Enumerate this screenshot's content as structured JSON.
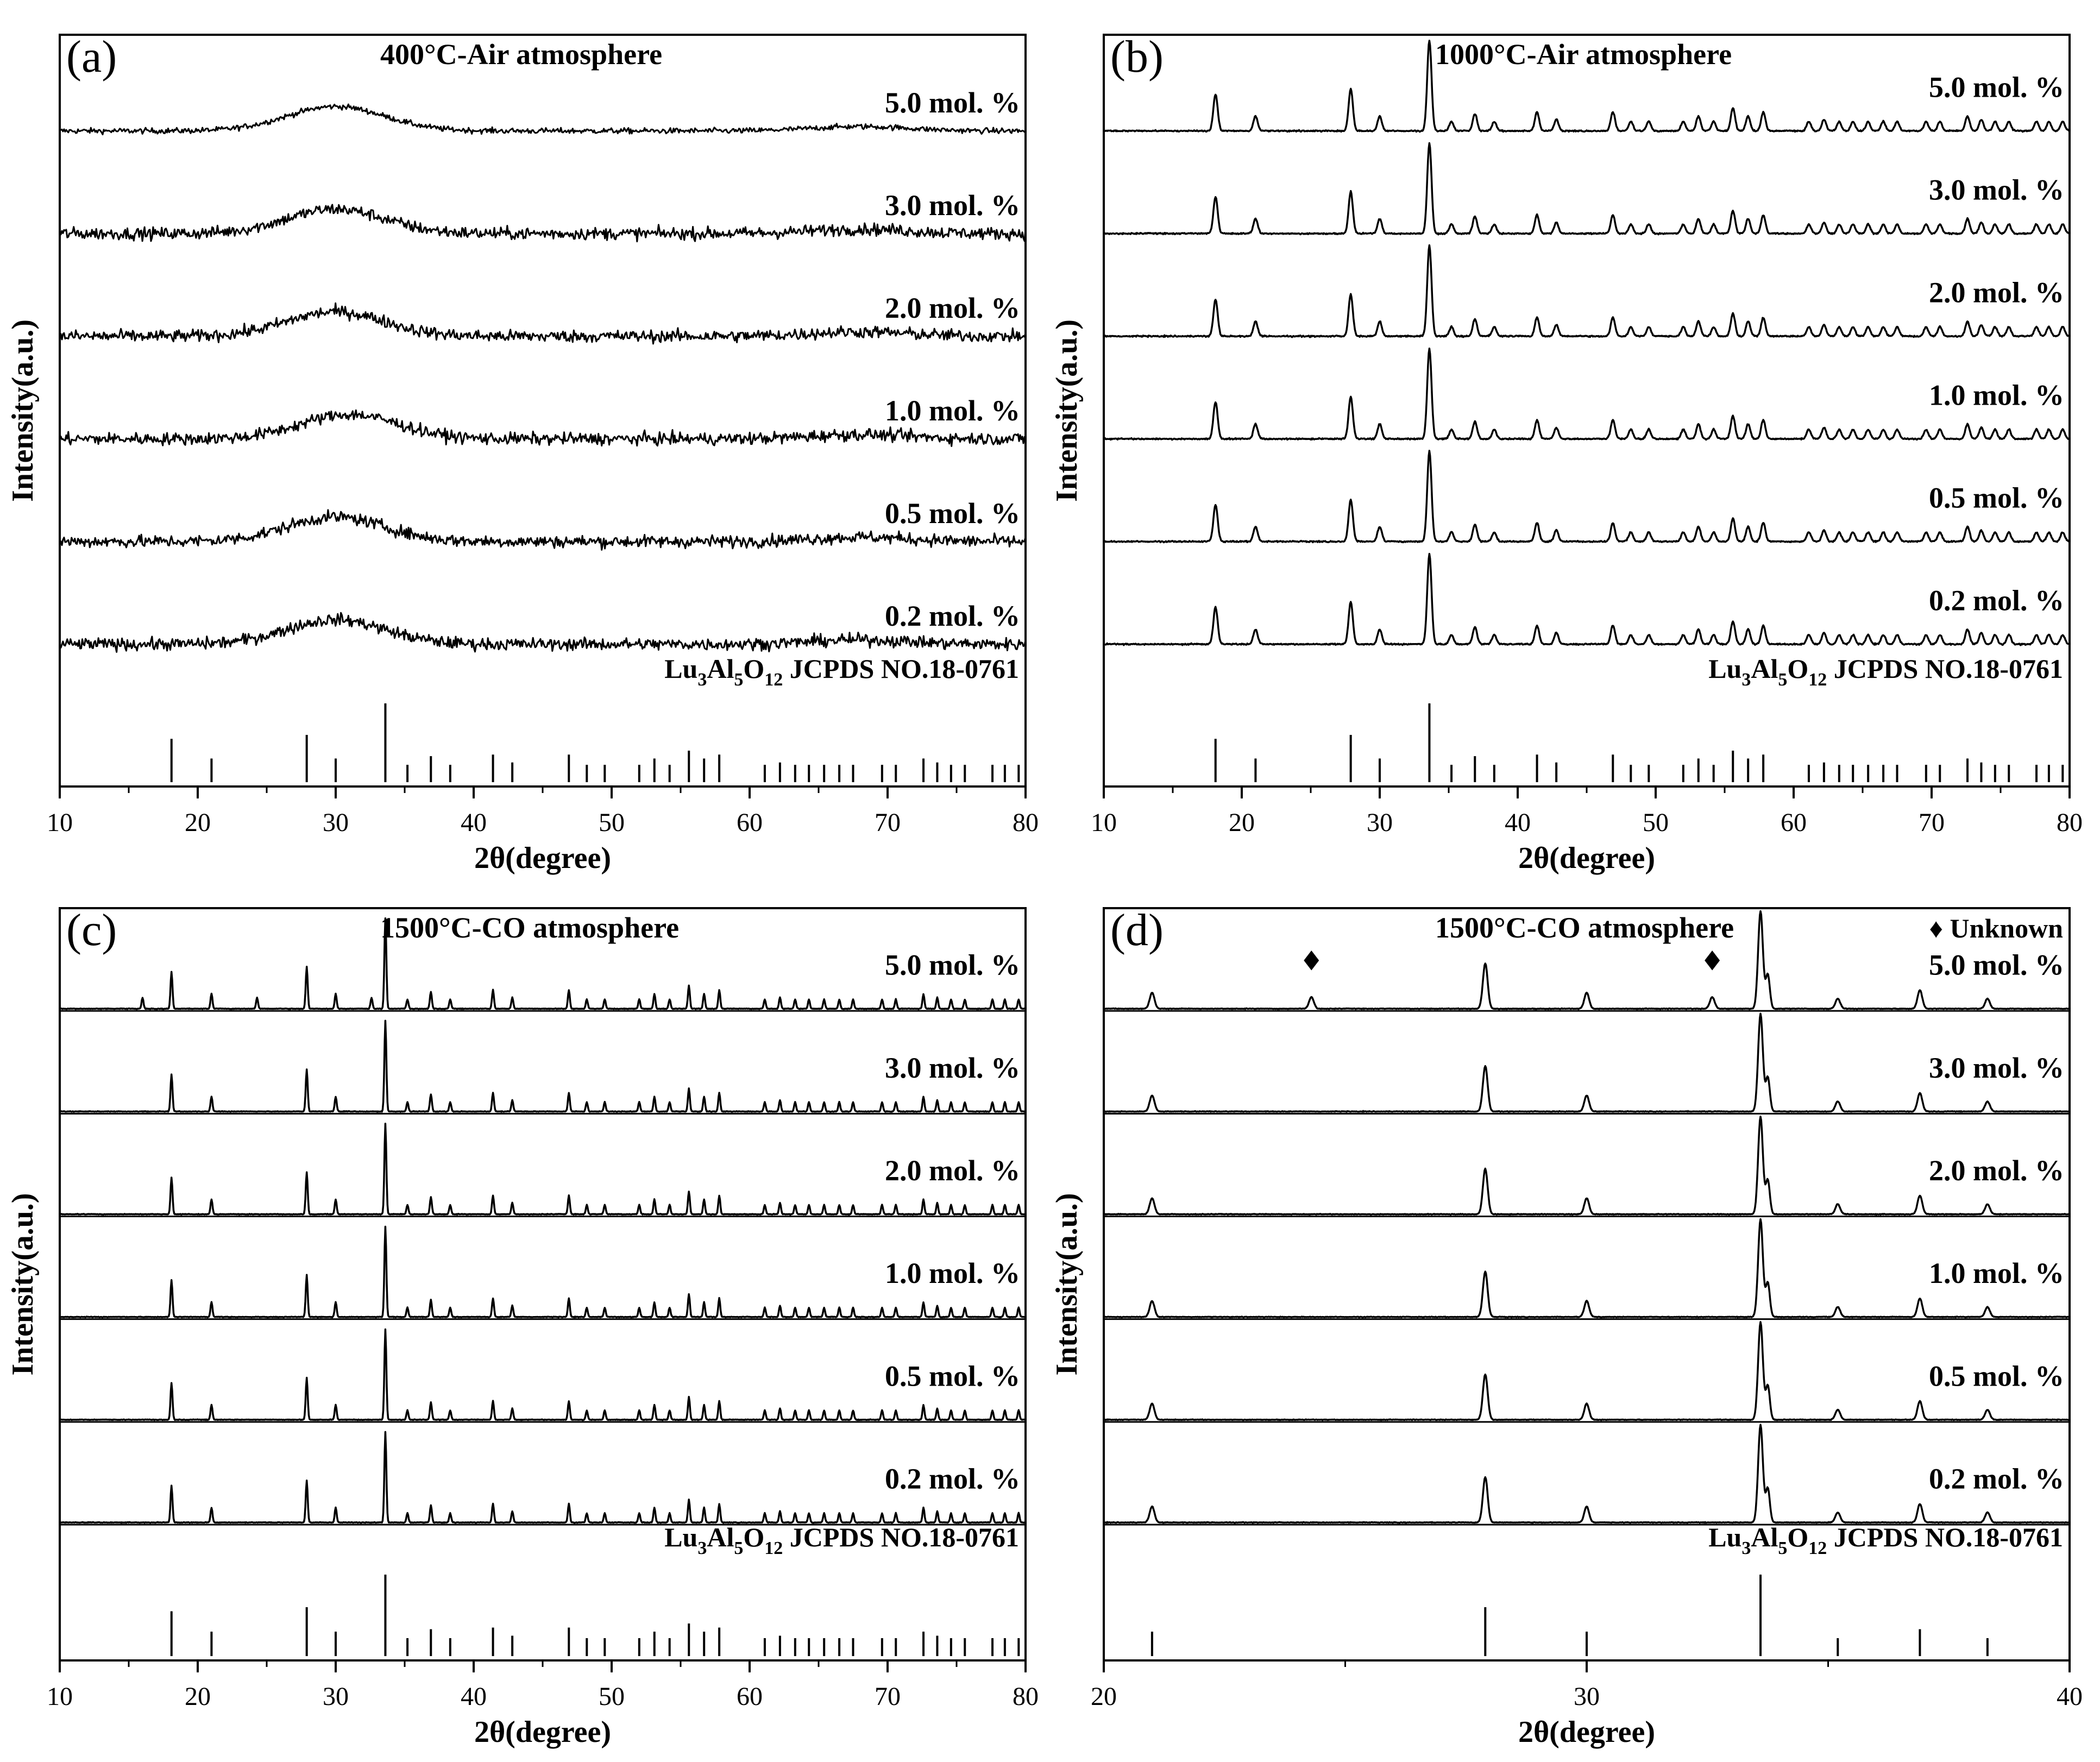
{
  "figure": {
    "x_axis_label": "2θ(degree)",
    "y_axis_label": "Intensity(a.u.)",
    "reference_label": {
      "prefix": "Lu",
      "sub1": "3",
      "mid1": "Al",
      "sub2": "5",
      "mid2": "O",
      "sub3": "12",
      "suffix": " JCPDS NO.18-0761"
    },
    "sample_labels": [
      "5.0 mol. %",
      "3.0 mol. %",
      "2.0 mol. %",
      "1.0 mol. %",
      "0.5 mol. %",
      "0.2 mol. %"
    ],
    "line_color": "#000000"
  },
  "chart_data": [
    {
      "type": "line",
      "panel_letter": "(a)",
      "title": "400°C-Air atmosphere",
      "xlabel": "2θ(degree)",
      "ylabel": "Intensity(a.u.)",
      "xlim": [
        10,
        80
      ],
      "xticks": [
        10,
        20,
        30,
        40,
        50,
        60,
        70,
        80
      ],
      "pattern": "amorphous",
      "series": [
        {
          "name": "5.0 mol. %",
          "broad_hump_center": 30,
          "noise": "low"
        },
        {
          "name": "3.0 mol. %",
          "broad_hump_center": 30,
          "noise": "high"
        },
        {
          "name": "2.0 mol. %",
          "broad_hump_center": 30,
          "noise": "high"
        },
        {
          "name": "1.0 mol. %",
          "broad_hump_center": 31,
          "noise": "high"
        },
        {
          "name": "0.5 mol. %",
          "broad_hump_center": 30,
          "noise": "high"
        },
        {
          "name": "0.2 mol. %",
          "broad_hump_center": 30,
          "noise": "high"
        }
      ]
    },
    {
      "type": "line",
      "panel_letter": "(b)",
      "title": "1000°C-Air atmosphere",
      "xlabel": "2θ(degree)",
      "ylabel": "Intensity(a.u.)",
      "xlim": [
        10,
        80
      ],
      "xticks": [
        10,
        20,
        30,
        40,
        50,
        60,
        70,
        80
      ],
      "pattern": "crystalline",
      "series": [
        {
          "name": "5.0 mol. %"
        },
        {
          "name": "3.0 mol. %"
        },
        {
          "name": "2.0 mol. %"
        },
        {
          "name": "1.0 mol. %"
        },
        {
          "name": "0.5 mol. %"
        },
        {
          "name": "0.2 mol. %"
        }
      ]
    },
    {
      "type": "line",
      "panel_letter": "(c)",
      "title": "1500°C-CO atmosphere",
      "xlabel": "2θ(degree)",
      "ylabel": "Intensity(a.u.)",
      "xlim": [
        10,
        80
      ],
      "xticks": [
        10,
        20,
        30,
        40,
        50,
        60,
        70,
        80
      ],
      "pattern": "sharp",
      "series": [
        {
          "name": "5.0 mol. %",
          "extra_peaks": [
            16.0,
            24.3,
            32.6
          ]
        },
        {
          "name": "3.0 mol. %"
        },
        {
          "name": "2.0 mol. %"
        },
        {
          "name": "1.0 mol. %"
        },
        {
          "name": "0.5 mol. %"
        },
        {
          "name": "0.2 mol. %"
        }
      ]
    },
    {
      "type": "line",
      "panel_letter": "(d)",
      "title": "1500°C-CO atmosphere",
      "legend": "♦ Unknown",
      "xlabel": "2θ(degree)",
      "ylabel": "Intensity(a.u.)",
      "xlim": [
        20,
        40
      ],
      "xticks": [
        20,
        30,
        40
      ],
      "pattern": "zoom",
      "unknown_peaks": [
        24.3,
        32.6
      ],
      "series": [
        {
          "name": "5.0 mol. %",
          "extra_peaks": [
            24.3,
            32.6
          ]
        },
        {
          "name": "3.0 mol. %"
        },
        {
          "name": "2.0 mol. %"
        },
        {
          "name": "1.0 mol. %"
        },
        {
          "name": "0.5 mol. %"
        },
        {
          "name": "0.2 mol. %"
        }
      ]
    }
  ],
  "reference_pattern": {
    "name": "Lu3Al5O12 JCPDS NO.18-0761",
    "peaks": [
      {
        "two_theta": 18.1,
        "rel": 55
      },
      {
        "two_theta": 21.0,
        "rel": 30
      },
      {
        "two_theta": 27.9,
        "rel": 60
      },
      {
        "two_theta": 30.0,
        "rel": 30
      },
      {
        "two_theta": 33.6,
        "rel": 100
      },
      {
        "two_theta": 35.2,
        "rel": 22
      },
      {
        "two_theta": 36.9,
        "rel": 33
      },
      {
        "two_theta": 38.3,
        "rel": 22
      },
      {
        "two_theta": 41.4,
        "rel": 35
      },
      {
        "two_theta": 42.8,
        "rel": 25
      },
      {
        "two_theta": 46.9,
        "rel": 35
      },
      {
        "two_theta": 48.2,
        "rel": 22
      },
      {
        "two_theta": 49.5,
        "rel": 22
      },
      {
        "two_theta": 52.0,
        "rel": 22
      },
      {
        "two_theta": 53.1,
        "rel": 30
      },
      {
        "two_theta": 54.2,
        "rel": 22
      },
      {
        "two_theta": 55.6,
        "rel": 40
      },
      {
        "two_theta": 56.7,
        "rel": 30
      },
      {
        "two_theta": 57.8,
        "rel": 35
      },
      {
        "two_theta": 61.1,
        "rel": 22
      },
      {
        "two_theta": 62.2,
        "rel": 25
      },
      {
        "two_theta": 63.3,
        "rel": 22
      },
      {
        "two_theta": 64.3,
        "rel": 22
      },
      {
        "two_theta": 65.4,
        "rel": 22
      },
      {
        "two_theta": 66.5,
        "rel": 22
      },
      {
        "two_theta": 67.5,
        "rel": 22
      },
      {
        "two_theta": 69.6,
        "rel": 22
      },
      {
        "two_theta": 70.6,
        "rel": 22
      },
      {
        "two_theta": 72.6,
        "rel": 30
      },
      {
        "two_theta": 73.6,
        "rel": 25
      },
      {
        "two_theta": 74.6,
        "rel": 22
      },
      {
        "two_theta": 75.6,
        "rel": 22
      },
      {
        "two_theta": 77.6,
        "rel": 22
      },
      {
        "two_theta": 78.5,
        "rel": 22
      },
      {
        "two_theta": 79.5,
        "rel": 22
      }
    ]
  }
}
